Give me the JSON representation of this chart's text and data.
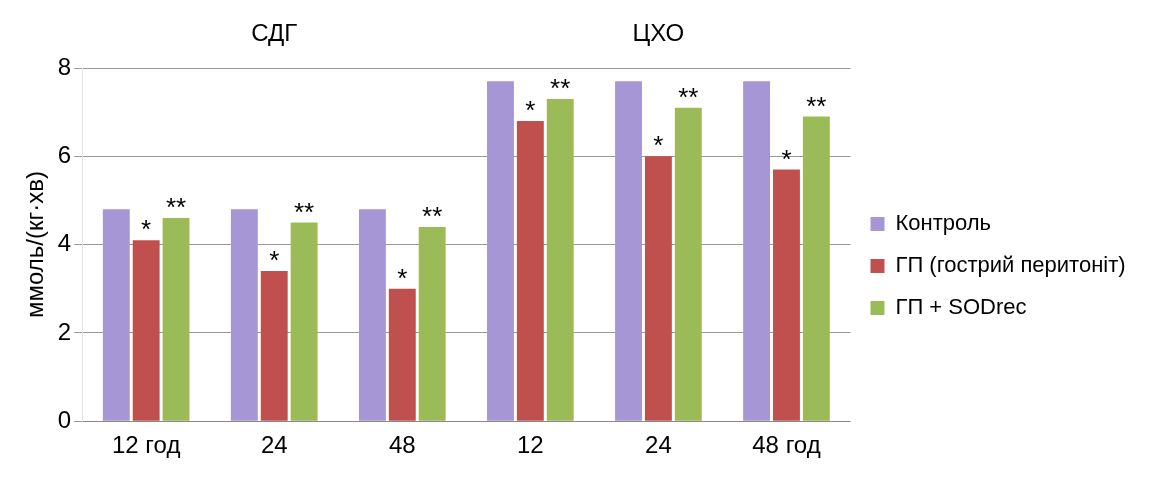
{
  "chart_data": {
    "type": "bar",
    "categories": [
      "12 год",
      "24",
      "48",
      "12",
      "24",
      "48 год"
    ],
    "ylabel": "ммоль/(кг·хв)",
    "ylim": [
      0,
      8
    ],
    "yticks": [
      0,
      2,
      4,
      6,
      8
    ],
    "grid": "y",
    "legend": "right",
    "annotations": [
      "СДГ",
      "ЦХО"
    ],
    "series": [
      {
        "name": "Контроль",
        "color": "#a696d6",
        "values": [
          4.8,
          4.8,
          4.8,
          7.7,
          7.7,
          7.7
        ]
      },
      {
        "name": "ГП (гострий перитоніт)",
        "color": "#c0504d",
        "values": [
          4.1,
          3.4,
          3.0,
          6.8,
          6.0,
          5.7
        ],
        "value_labels": [
          "*",
          "*",
          "*",
          "*",
          "*",
          "*"
        ]
      },
      {
        "name": "ГП + SODrec",
        "color": "#9bbb59",
        "values": [
          4.6,
          4.5,
          4.4,
          7.3,
          7.1,
          6.9
        ],
        "value_labels": [
          "**",
          "**",
          "**",
          "**",
          "**",
          "**"
        ]
      }
    ]
  }
}
